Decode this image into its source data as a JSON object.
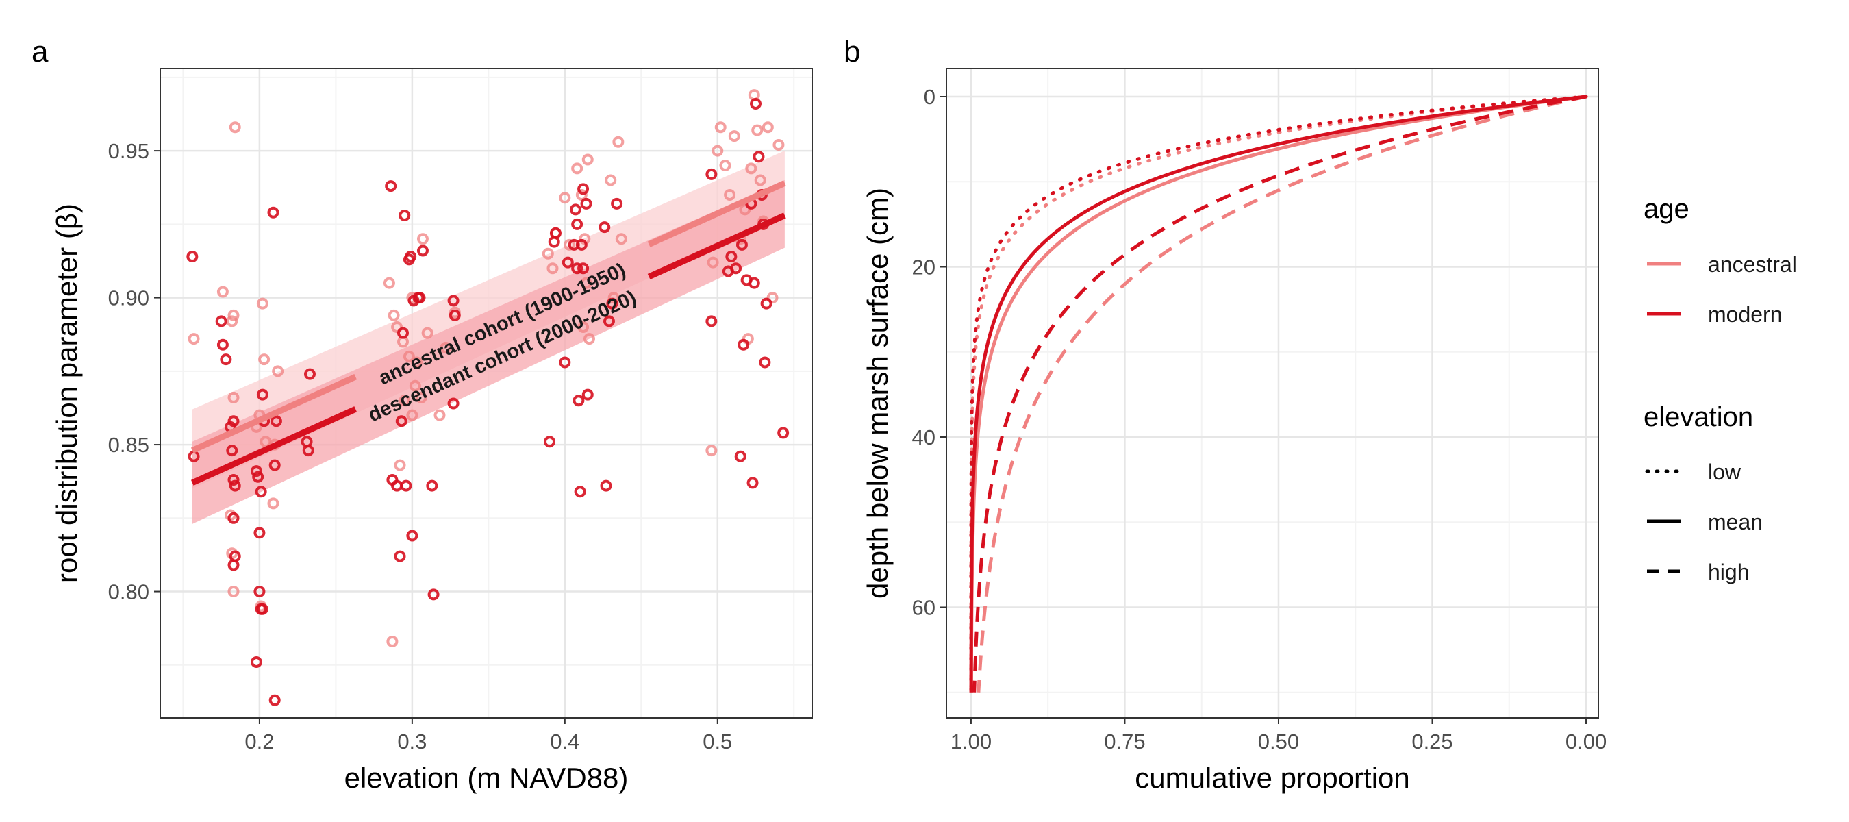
{
  "panels": {
    "a": {
      "tag": "a"
    },
    "b": {
      "tag": "b"
    }
  },
  "colors": {
    "ancestral": "#f08080",
    "modern": "#d7101f",
    "ancestral_ribbon": "#fbd0d2",
    "modern_ribbon": "#f7a7ae"
  },
  "chart_data": [
    {
      "type": "scatter",
      "panel": "a",
      "xlabel": "elevation (m NAVD88)",
      "ylabel": "root distribution parameter (β)",
      "xlim": [
        0.135,
        0.562
      ],
      "ylim": [
        0.757,
        0.978
      ],
      "xticks": [
        0.2,
        0.3,
        0.4,
        0.5
      ],
      "xtick_labels": [
        "0.2",
        "0.3",
        "0.4",
        "0.5"
      ],
      "yticks": [
        0.8,
        0.85,
        0.9,
        0.95
      ],
      "ytick_labels": [
        "0.80",
        "0.85",
        "0.90",
        "0.95"
      ],
      "grid": true,
      "series": [
        {
          "name": "ancestral cohort (1900-1950)",
          "color": "#f08080",
          "fit": {
            "x": [
              0.156,
              0.544
            ],
            "y": [
              0.848,
              0.939
            ]
          },
          "ribbon": {
            "x": [
              0.156,
              0.544
            ],
            "lower": [
              0.835,
              0.928
            ],
            "upper": [
              0.862,
              0.95
            ]
          },
          "points": [
            [
              0.157,
              0.886
            ],
            [
              0.176,
              0.902
            ],
            [
              0.184,
              0.958
            ],
            [
              0.183,
              0.894
            ],
            [
              0.182,
              0.892
            ],
            [
              0.183,
              0.866
            ],
            [
              0.181,
              0.826
            ],
            [
              0.182,
              0.813
            ],
            [
              0.183,
              0.8
            ],
            [
              0.198,
              0.856
            ],
            [
              0.2,
              0.86
            ],
            [
              0.202,
              0.898
            ],
            [
              0.203,
              0.879
            ],
            [
              0.204,
              0.851
            ],
            [
              0.201,
              0.795
            ],
            [
              0.212,
              0.875
            ],
            [
              0.21,
              0.85
            ],
            [
              0.209,
              0.83
            ],
            [
              0.285,
              0.905
            ],
            [
              0.288,
              0.894
            ],
            [
              0.29,
              0.89
            ],
            [
              0.287,
              0.783
            ],
            [
              0.292,
              0.843
            ],
            [
              0.294,
              0.885
            ],
            [
              0.295,
              0.865
            ],
            [
              0.298,
              0.88
            ],
            [
              0.3,
              0.86
            ],
            [
              0.3,
              0.9
            ],
            [
              0.302,
              0.87
            ],
            [
              0.303,
              0.878
            ],
            [
              0.307,
              0.92
            ],
            [
              0.306,
              0.866
            ],
            [
              0.31,
              0.888
            ],
            [
              0.318,
              0.86
            ],
            [
              0.322,
              0.883
            ],
            [
              0.328,
              0.895
            ],
            [
              0.389,
              0.915
            ],
            [
              0.392,
              0.91
            ],
            [
              0.394,
              0.922
            ],
            [
              0.4,
              0.934
            ],
            [
              0.403,
              0.918
            ],
            [
              0.408,
              0.944
            ],
            [
              0.411,
              0.935
            ],
            [
              0.413,
              0.92
            ],
            [
              0.415,
              0.947
            ],
            [
              0.414,
              0.905
            ],
            [
              0.416,
              0.886
            ],
            [
              0.412,
              0.89
            ],
            [
              0.43,
              0.94
            ],
            [
              0.435,
              0.953
            ],
            [
              0.437,
              0.92
            ],
            [
              0.432,
              0.9
            ],
            [
              0.497,
              0.912
            ],
            [
              0.496,
              0.848
            ],
            [
              0.5,
              0.95
            ],
            [
              0.502,
              0.958
            ],
            [
              0.505,
              0.945
            ],
            [
              0.508,
              0.935
            ],
            [
              0.511,
              0.955
            ],
            [
              0.515,
              0.92
            ],
            [
              0.518,
              0.93
            ],
            [
              0.52,
              0.886
            ],
            [
              0.522,
              0.944
            ],
            [
              0.524,
              0.969
            ],
            [
              0.526,
              0.957
            ],
            [
              0.528,
              0.94
            ],
            [
              0.53,
              0.926
            ],
            [
              0.533,
              0.958
            ],
            [
              0.54,
              0.952
            ],
            [
              0.536,
              0.9
            ]
          ]
        },
        {
          "name": "descendant cohort (2000-2020)",
          "color": "#d7101f",
          "fit": {
            "x": [
              0.156,
              0.544
            ],
            "y": [
              0.837,
              0.928
            ]
          },
          "ribbon": {
            "x": [
              0.156,
              0.544
            ],
            "lower": [
              0.823,
              0.917
            ],
            "upper": [
              0.851,
              0.94
            ]
          },
          "points": [
            [
              0.156,
              0.914
            ],
            [
              0.157,
              0.846
            ],
            [
              0.175,
              0.892
            ],
            [
              0.176,
              0.884
            ],
            [
              0.178,
              0.879
            ],
            [
              0.181,
              0.856
            ],
            [
              0.183,
              0.858
            ],
            [
              0.182,
              0.848
            ],
            [
              0.183,
              0.838
            ],
            [
              0.184,
              0.836
            ],
            [
              0.183,
              0.825
            ],
            [
              0.184,
              0.812
            ],
            [
              0.183,
              0.809
            ],
            [
              0.198,
              0.841
            ],
            [
              0.199,
              0.839
            ],
            [
              0.201,
              0.834
            ],
            [
              0.2,
              0.82
            ],
            [
              0.2,
              0.8
            ],
            [
              0.201,
              0.794
            ],
            [
              0.202,
              0.794
            ],
            [
              0.198,
              0.776
            ],
            [
              0.202,
              0.867
            ],
            [
              0.203,
              0.858
            ],
            [
              0.209,
              0.929
            ],
            [
              0.21,
              0.843
            ],
            [
              0.211,
              0.858
            ],
            [
              0.21,
              0.763
            ],
            [
              0.231,
              0.851
            ],
            [
              0.232,
              0.848
            ],
            [
              0.233,
              0.874
            ],
            [
              0.286,
              0.938
            ],
            [
              0.287,
              0.838
            ],
            [
              0.29,
              0.836
            ],
            [
              0.292,
              0.812
            ],
            [
              0.294,
              0.888
            ],
            [
              0.293,
              0.858
            ],
            [
              0.295,
              0.928
            ],
            [
              0.296,
              0.836
            ],
            [
              0.298,
              0.913
            ],
            [
              0.299,
              0.914
            ],
            [
              0.3,
              0.819
            ],
            [
              0.301,
              0.899
            ],
            [
              0.304,
              0.9
            ],
            [
              0.305,
              0.9
            ],
            [
              0.307,
              0.916
            ],
            [
              0.313,
              0.836
            ],
            [
              0.314,
              0.799
            ],
            [
              0.327,
              0.899
            ],
            [
              0.328,
              0.894
            ],
            [
              0.327,
              0.864
            ],
            [
              0.39,
              0.851
            ],
            [
              0.393,
              0.919
            ],
            [
              0.394,
              0.922
            ],
            [
              0.4,
              0.878
            ],
            [
              0.402,
              0.912
            ],
            [
              0.406,
              0.918
            ],
            [
              0.407,
              0.93
            ],
            [
              0.408,
              0.925
            ],
            [
              0.408,
              0.91
            ],
            [
              0.409,
              0.865
            ],
            [
              0.41,
              0.834
            ],
            [
              0.411,
              0.918
            ],
            [
              0.412,
              0.937
            ],
            [
              0.412,
              0.91
            ],
            [
              0.414,
              0.932
            ],
            [
              0.415,
              0.867
            ],
            [
              0.426,
              0.924
            ],
            [
              0.427,
              0.836
            ],
            [
              0.429,
              0.892
            ],
            [
              0.431,
              0.898
            ],
            [
              0.434,
              0.932
            ],
            [
              0.496,
              0.942
            ],
            [
              0.496,
              0.892
            ],
            [
              0.507,
              0.909
            ],
            [
              0.509,
              0.914
            ],
            [
              0.512,
              0.91
            ],
            [
              0.515,
              0.846
            ],
            [
              0.517,
              0.884
            ],
            [
              0.516,
              0.918
            ],
            [
              0.519,
              0.906
            ],
            [
              0.522,
              0.932
            ],
            [
              0.524,
              0.905
            ],
            [
              0.523,
              0.837
            ],
            [
              0.525,
              0.966
            ],
            [
              0.527,
              0.948
            ],
            [
              0.529,
              0.935
            ],
            [
              0.53,
              0.925
            ],
            [
              0.531,
              0.878
            ],
            [
              0.532,
              0.898
            ],
            [
              0.543,
              0.854
            ]
          ]
        }
      ],
      "annotations": [
        {
          "text": "ancestral cohort (1900-1950)",
          "x": 0.359,
          "y": 0.891
        },
        {
          "text": "descendant cohort (2000-2020)",
          "x": 0.359,
          "y": 0.88
        }
      ]
    },
    {
      "type": "line",
      "panel": "b",
      "xlabel": "cumulative proportion",
      "ylabel": "depth below marsh surface (cm)",
      "xlim": [
        1.04,
        -0.02
      ],
      "ylim": [
        73,
        -3.3
      ],
      "x_reversed": true,
      "y_reversed": true,
      "xticks": [
        1.0,
        0.75,
        0.5,
        0.25,
        0.0
      ],
      "xtick_labels": [
        "1.00",
        "0.75",
        "0.50",
        "0.25",
        "0.00"
      ],
      "yticks": [
        0,
        20,
        40,
        60
      ],
      "ytick_labels": [
        "0",
        "20",
        "40",
        "60"
      ],
      "grid": true,
      "depth_max": 70,
      "legend": {
        "placement": "right",
        "age": {
          "title": "age",
          "items": [
            {
              "label": "ancestral",
              "color": "#f08080"
            },
            {
              "label": "modern",
              "color": "#d7101f"
            }
          ]
        },
        "elevation": {
          "title": "elevation",
          "items": [
            {
              "label": "low",
              "dash": "dotted"
            },
            {
              "label": "mean",
              "dash": "solid"
            },
            {
              "label": "high",
              "dash": "dashed"
            }
          ]
        }
      },
      "series": [
        {
          "age": "ancestral",
          "elevation": "low",
          "beta": 0.848,
          "color": "#f08080",
          "dash": "dotted"
        },
        {
          "age": "ancestral",
          "elevation": "mean",
          "beta": 0.893,
          "color": "#f08080",
          "dash": "solid"
        },
        {
          "age": "ancestral",
          "elevation": "high",
          "beta": 0.939,
          "color": "#f08080",
          "dash": "dashed"
        },
        {
          "age": "modern",
          "elevation": "low",
          "beta": 0.837,
          "color": "#d7101f",
          "dash": "dotted"
        },
        {
          "age": "modern",
          "elevation": "mean",
          "beta": 0.883,
          "color": "#d7101f",
          "dash": "solid"
        },
        {
          "age": "modern",
          "elevation": "high",
          "beta": 0.928,
          "color": "#d7101f",
          "dash": "dashed"
        }
      ]
    }
  ]
}
